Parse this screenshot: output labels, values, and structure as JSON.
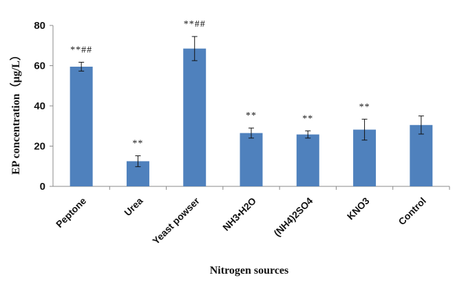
{
  "chart_data": {
    "type": "bar",
    "title": "",
    "xlabel": "Nitrogen sources",
    "ylabel": "EP concentration（μg/L）",
    "ylim": [
      0,
      80
    ],
    "yticks": [
      0,
      20,
      40,
      60,
      80
    ],
    "grid": false,
    "legend": "none",
    "bar_color": "#4f81bd",
    "categories": [
      "Peptone",
      "Urea",
      "Yeast powser",
      "NH3•H2O",
      "(NH4)2SO4",
      "KNO3",
      "Control"
    ],
    "values": [
      59.5,
      12.5,
      68.5,
      26.5,
      25.8,
      28.2,
      30.5
    ],
    "errors": [
      2.2,
      2.7,
      6.0,
      2.5,
      1.8,
      5.2,
      4.5
    ],
    "annotations": [
      "**##",
      "**",
      "**##",
      "**",
      "**",
      "**",
      ""
    ]
  }
}
